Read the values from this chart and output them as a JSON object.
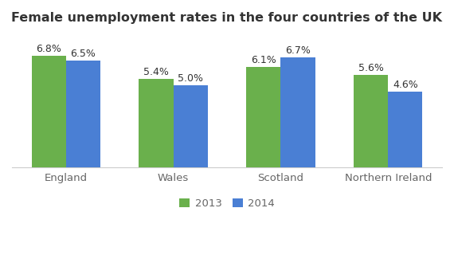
{
  "title": "Female unemployment rates in the four countries of the UK",
  "categories": [
    "England",
    "Wales",
    "Scotland",
    "Northern Ireland"
  ],
  "values_2013": [
    6.8,
    5.4,
    6.1,
    5.6
  ],
  "values_2014": [
    6.5,
    5.0,
    6.7,
    4.6
  ],
  "color_2013": "#6ab04c",
  "color_2014": "#4a7fd4",
  "legend_labels": [
    "2013",
    "2014"
  ],
  "ylim": [
    0,
    8.2
  ],
  "bar_width": 0.32,
  "background_color": "#ffffff",
  "title_fontsize": 11.5,
  "tick_fontsize": 9.5,
  "legend_fontsize": 9.5,
  "annotation_fontsize": 9.0,
  "title_color": "#333333",
  "tick_color": "#666666",
  "annotation_color": "#333333"
}
